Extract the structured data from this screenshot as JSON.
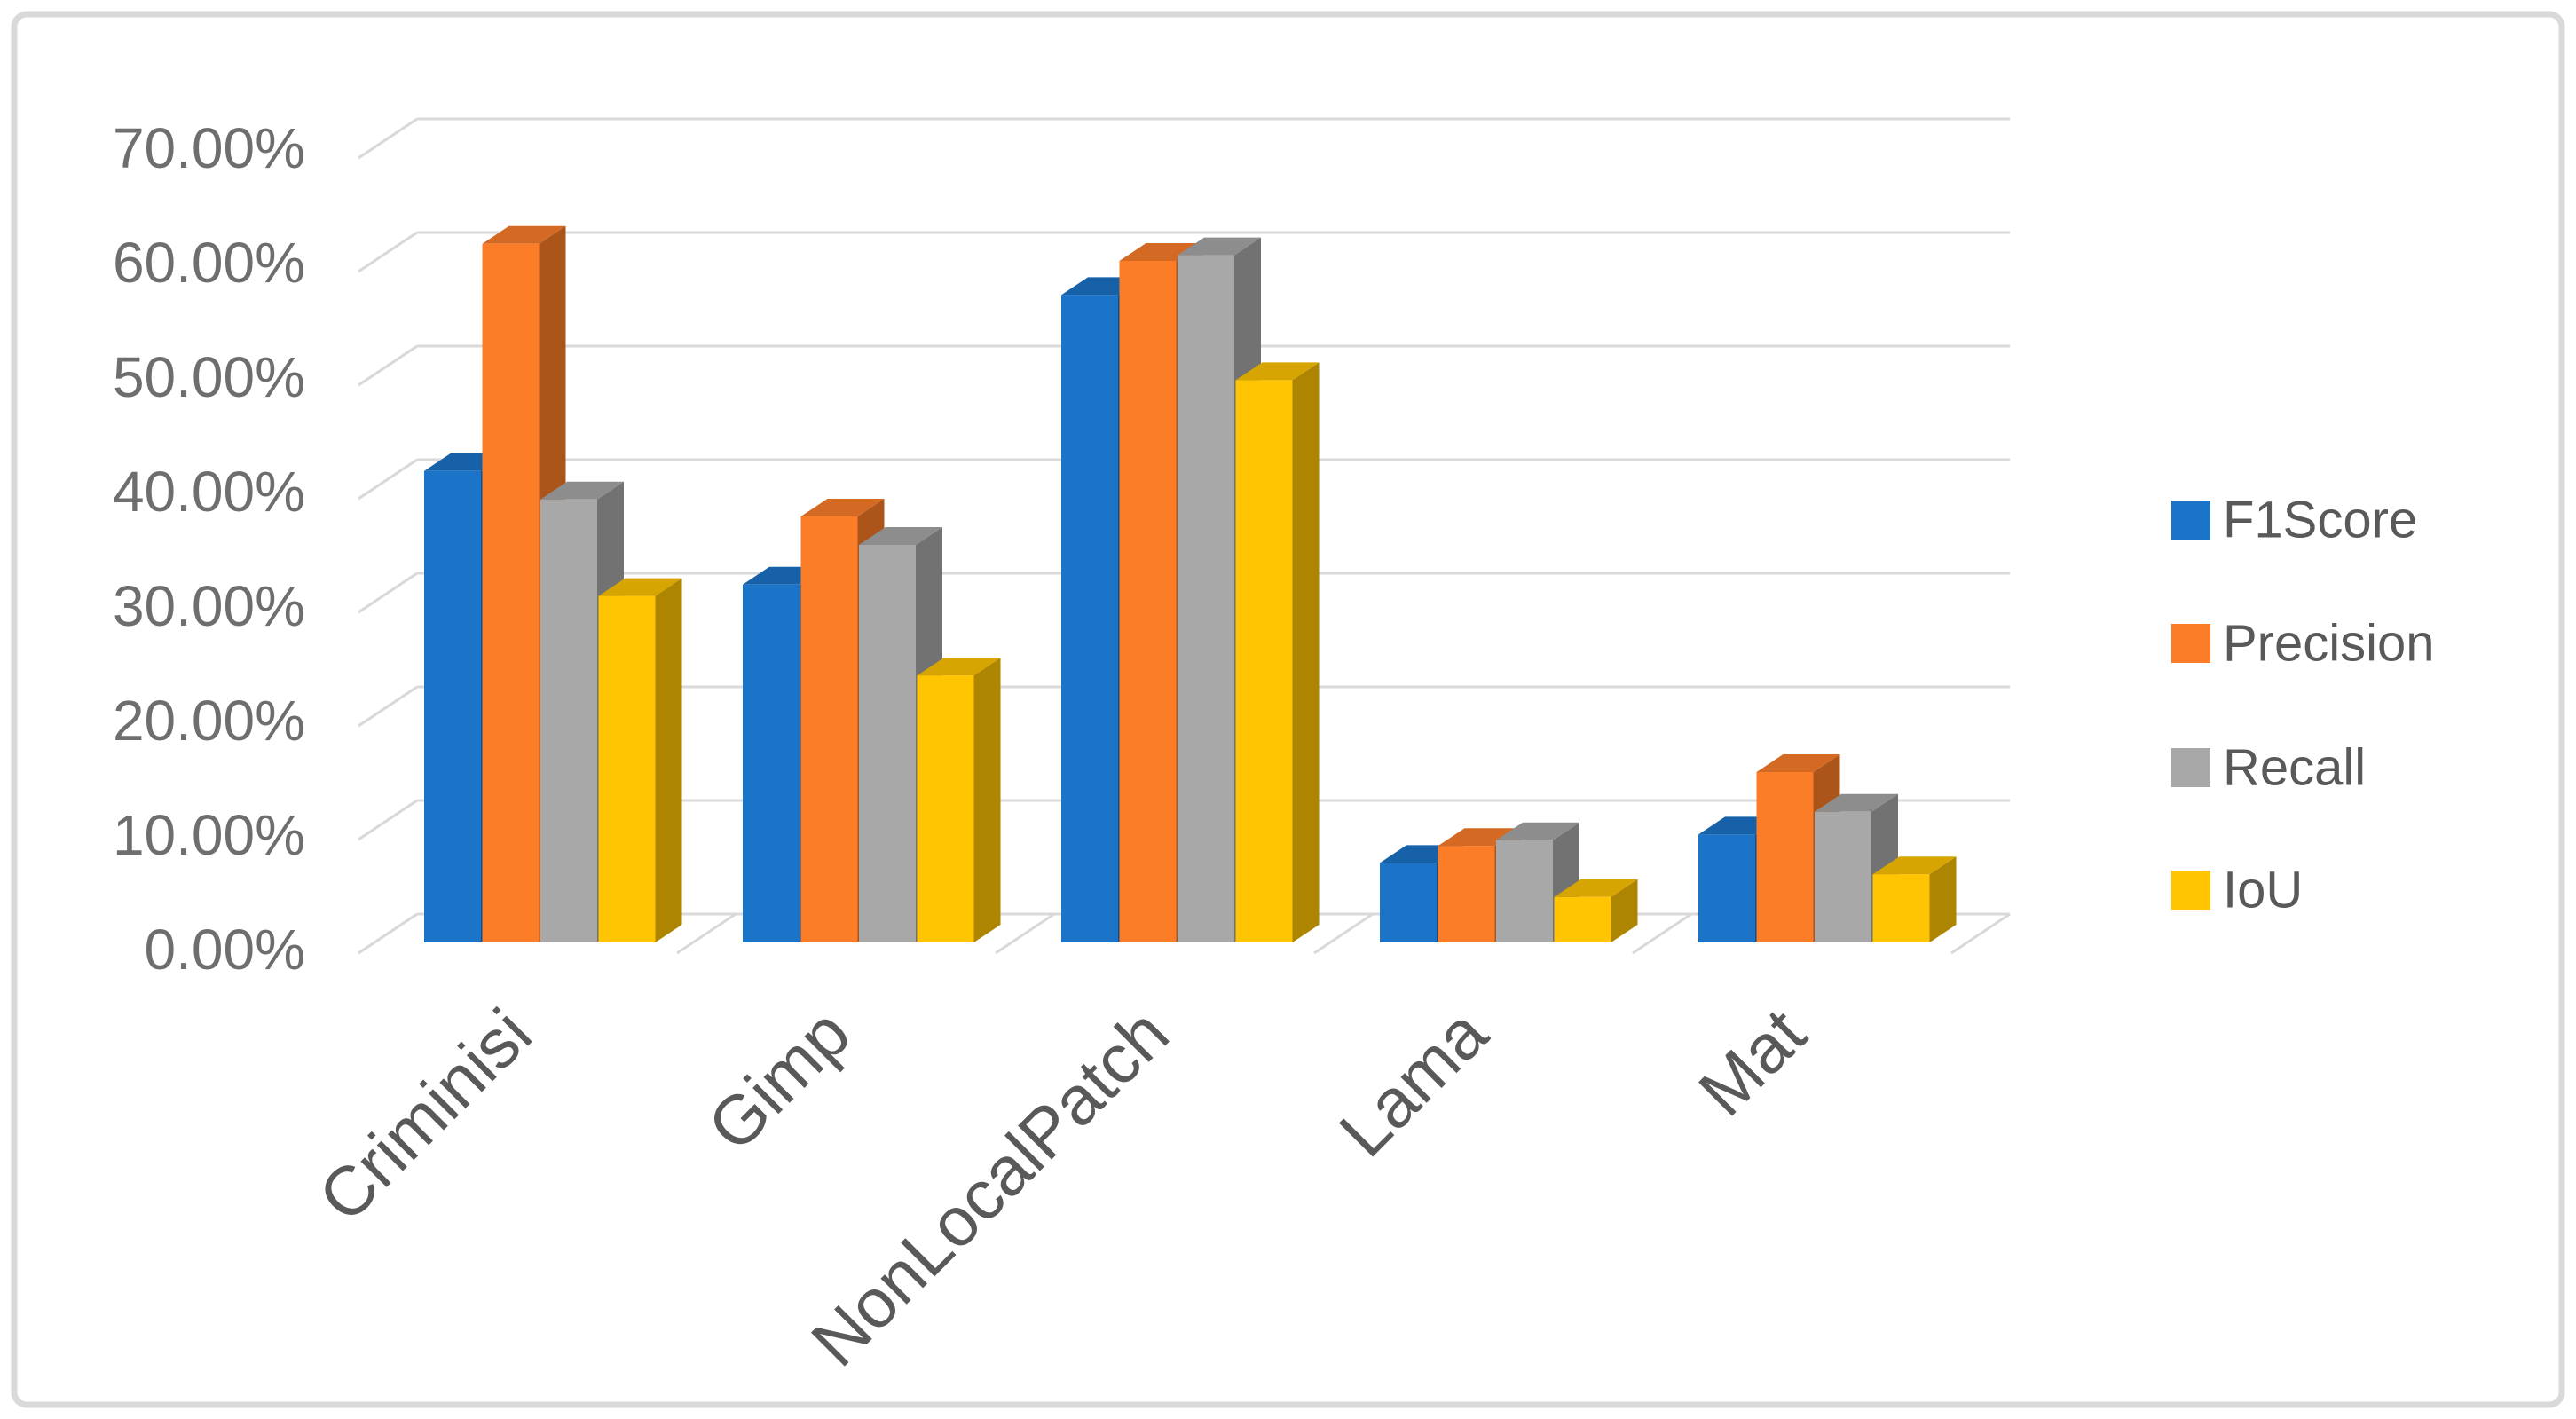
{
  "chart_data": {
    "type": "bar",
    "subtype": "3d-clustered-column",
    "title": "",
    "xlabel": "",
    "ylabel": "",
    "categories": [
      "Criminisi",
      "Gimp",
      "NonLocalPatch",
      "Lama",
      "Mat"
    ],
    "series": [
      {
        "name": "F1Score",
        "color": "#1B74C8",
        "values": [
          41.5,
          31.5,
          57.0,
          7.0,
          9.5
        ]
      },
      {
        "name": "Precision",
        "color": "#FB7D28",
        "values": [
          61.5,
          37.5,
          60.0,
          8.5,
          15.0
        ]
      },
      {
        "name": "Recall",
        "color": "#A8A8A8",
        "values": [
          39.0,
          35.0,
          60.5,
          9.0,
          11.5
        ]
      },
      {
        "name": "IoU",
        "color": "#FFC402",
        "values": [
          30.5,
          23.5,
          49.5,
          4.0,
          6.0
        ]
      }
    ],
    "values_unit": "percent",
    "ylim": [
      0,
      70
    ],
    "ytick_step": 10,
    "ytick_labels": [
      "0.00%",
      "10.00%",
      "20.00%",
      "30.00%",
      "40.00%",
      "50.00%",
      "60.00%",
      "70.00%"
    ],
    "grid": true,
    "legend_position": "right",
    "legend_labels": [
      "F1Score",
      "Precision",
      "Recall",
      "IoU"
    ]
  },
  "style_colors": {
    "gridline": "#D9D9D9",
    "border": "#D9D9D9",
    "tick_text": "#6E6E6E",
    "category_text": "#595959",
    "legend_text": "#595959",
    "background": "#FFFFFF"
  }
}
